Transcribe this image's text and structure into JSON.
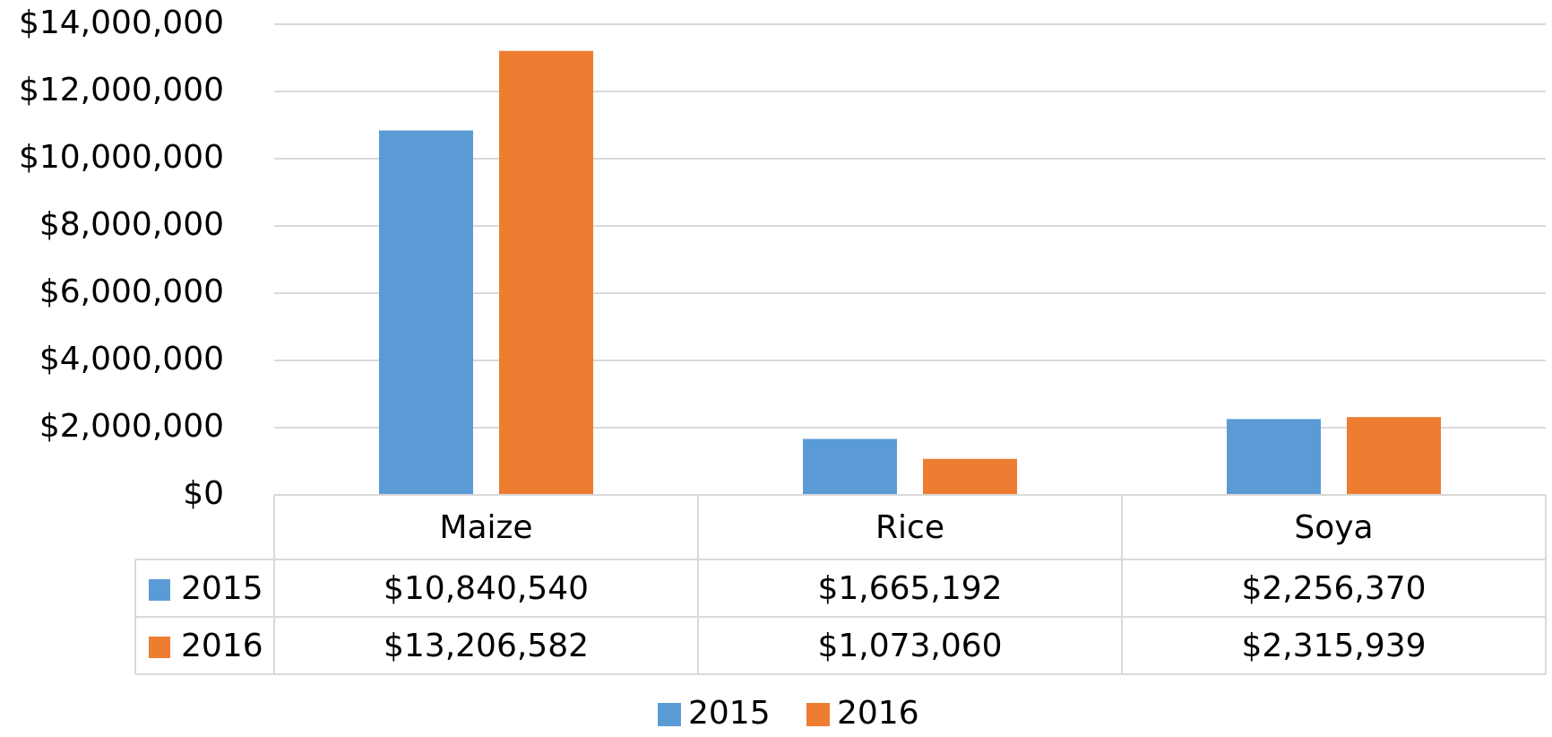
{
  "chart_data": {
    "type": "bar",
    "categories": [
      "Maize",
      "Rice",
      "Soya"
    ],
    "series": [
      {
        "name": "2015",
        "color": "#5b9bd5",
        "values": [
          10840540,
          1665192,
          2256370
        ],
        "value_labels": [
          "$10,840,540",
          "$1,665,192",
          "$2,256,370"
        ]
      },
      {
        "name": "2016",
        "color": "#ed7d31",
        "values": [
          13206582,
          1073060,
          2315939
        ],
        "value_labels": [
          "$13,206,582",
          "$1,073,060",
          "$2,315,939"
        ]
      }
    ],
    "ylim": [
      0,
      14000000
    ],
    "yticks": [
      {
        "value": 0,
        "label": "$0"
      },
      {
        "value": 2000000,
        "label": "$2,000,000"
      },
      {
        "value": 4000000,
        "label": "$4,000,000"
      },
      {
        "value": 6000000,
        "label": "$6,000,000"
      },
      {
        "value": 8000000,
        "label": "$8,000,000"
      },
      {
        "value": 10000000,
        "label": "$10,000,000"
      },
      {
        "value": 12000000,
        "label": "$12,000,000"
      },
      {
        "value": 14000000,
        "label": "$14,000,000"
      }
    ],
    "grid": true,
    "legend": "bottom",
    "data_table": true
  }
}
